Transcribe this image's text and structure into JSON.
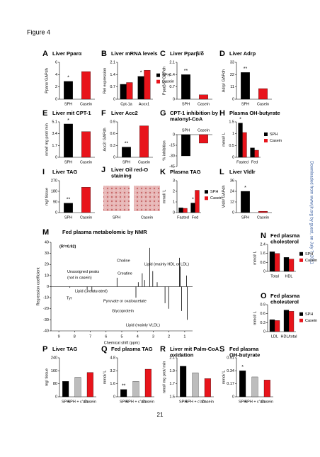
{
  "heading": "Figure 4",
  "page_number": "21",
  "side_note": "Downloaded from www.jlr.org by guest, on July 7, 2011",
  "chart_data": [
    {
      "type": "bar",
      "label": "A",
      "title": "Liver Pparα",
      "ylabel": "Pparα/ GAPdh",
      "categories": [
        "SPH",
        "Casein"
      ],
      "values": [
        2.9,
        4.5
      ],
      "colors": [
        "#000000",
        "#e8141b"
      ],
      "stars": [
        "*",
        null
      ],
      "ylim": [
        0,
        6
      ],
      "yticks": [
        0,
        2,
        4,
        6
      ]
    },
    {
      "type": "bar",
      "label": "B",
      "title": "Liver mRNA levels",
      "ylabel": "Rel expression",
      "categories": [
        "Cpt-1a",
        "Acox1"
      ],
      "series": [
        {
          "name": "SPH",
          "color": "#000000",
          "values": [
            0.85,
            1.3
          ],
          "stars": [
            null,
            "*"
          ]
        },
        {
          "name": "Casein",
          "color": "#e8141b",
          "values": [
            0.95,
            1.65
          ]
        }
      ],
      "ylim": [
        0,
        2.1
      ],
      "yticks": [
        0,
        0.7,
        1.4,
        2.1
      ]
    },
    {
      "type": "bar",
      "label": "C",
      "title": "Liver Pparβ/δ",
      "ylabel": "Pparβ/δ/ GAPdh",
      "categories": [
        "SPH",
        "Casein"
      ],
      "values": [
        1.4,
        0.25
      ],
      "colors": [
        "#000000",
        "#e8141b"
      ],
      "stars": [
        "**",
        null
      ],
      "ylim": [
        0,
        2.1
      ],
      "yticks": [
        0,
        0.7,
        1.4,
        2.1
      ]
    },
    {
      "type": "bar",
      "label": "D",
      "title": "Liver Adrp",
      "ylabel": "Adrp/ GAPdh",
      "categories": [
        "SPH",
        "Casein"
      ],
      "values": [
        24,
        9.5
      ],
      "colors": [
        "#000000",
        "#e8141b"
      ],
      "stars": [
        "**",
        null
      ],
      "ylim": [
        0,
        33
      ],
      "yticks": [
        0,
        11,
        22,
        33
      ]
    },
    {
      "type": "bar",
      "label": "E",
      "title": "Liver mit CPT-1",
      "ylabel": "nmol/ mg prot/ min",
      "categories": [
        "SPH",
        "Casein"
      ],
      "values": [
        4.8,
        3.7
      ],
      "colors": [
        "#000000",
        "#e8141b"
      ],
      "stars": [
        "*",
        null
      ],
      "ylim": [
        0,
        5.1
      ],
      "yticks": [
        0,
        1.7,
        3.4,
        5.1
      ]
    },
    {
      "type": "bar",
      "label": "F",
      "title": "Liver Acc2",
      "ylabel": "Acc2/ GAPdh",
      "categories": [
        "SPH",
        "Casein"
      ],
      "values": [
        0.26,
        0.8
      ],
      "colors": [
        "#000000",
        "#e8141b"
      ],
      "stars": [
        "**",
        null
      ],
      "ylim": [
        0,
        0.9
      ],
      "yticks": [
        0,
        0.3,
        0.6,
        0.9
      ]
    },
    {
      "type": "bar",
      "label": "G",
      "title": "CPT-1 inhibition by malonyl-CoA",
      "ylabel": "% inhibition",
      "categories": [
        "SPH",
        "Casein"
      ],
      "values": [
        -30,
        -12
      ],
      "colors": [
        "#000000",
        "#e8141b"
      ],
      "xaxis_position": "top",
      "ylim": [
        -45,
        0
      ],
      "yticks": [
        -45,
        -30,
        -15,
        0
      ]
    },
    {
      "type": "bar",
      "label": "H",
      "title": "Plasma OH-butyrate",
      "ylabel": "mmol/ L",
      "categories": [
        "Fasted",
        "Fed"
      ],
      "series": [
        {
          "name": "SPH",
          "color": "#000000",
          "values": [
            1.45,
            0.4
          ],
          "stars": [
            "*",
            null
          ]
        },
        {
          "name": "Casein",
          "color": "#e8141b",
          "values": [
            1.05,
            0.3
          ]
        }
      ],
      "ylim": [
        0,
        1.5
      ],
      "yticks": [
        0,
        0.5,
        1,
        1.5
      ]
    },
    {
      "type": "bar",
      "label": "I",
      "title": "Liver TAG",
      "ylabel": "mg/ tissue",
      "categories": [
        "SPH",
        "Casein"
      ],
      "values": [
        80,
        215
      ],
      "colors": [
        "#000000",
        "#e8141b"
      ],
      "stars": [
        "**",
        null
      ],
      "ylim": [
        0,
        270
      ],
      "yticks": [
        0,
        90,
        180,
        270
      ]
    },
    {
      "type": "micrograph",
      "label": "J",
      "title": "Liver Oil red-O staining",
      "categories": [
        "SPH",
        "Casein"
      ]
    },
    {
      "type": "bar",
      "label": "K",
      "title": "Plasma TAG",
      "ylabel": "mmol/ L",
      "categories": [
        "Fasted",
        "Fed"
      ],
      "series": [
        {
          "name": "SPH",
          "color": "#000000",
          "values": [
            0.45,
            0.9
          ],
          "stars": [
            null,
            "*"
          ]
        },
        {
          "name": "Casein",
          "color": "#e8141b",
          "values": [
            0.4,
            2.1
          ]
        }
      ],
      "ylim": [
        0,
        3
      ],
      "yticks": [
        0,
        1,
        2,
        3
      ]
    },
    {
      "type": "bar",
      "label": "L",
      "title": "Liver Vldlr",
      "ylabel": "Vldlr/ GAPdh",
      "categories": [
        "SPH",
        "Casein"
      ],
      "values": [
        24,
        1.5
      ],
      "colors": [
        "#000000",
        "#e8141b"
      ],
      "stars": [
        "*",
        null
      ],
      "ylim": [
        0,
        36
      ],
      "yticks": [
        0,
        12,
        24,
        36
      ]
    },
    {
      "type": "spectrum",
      "label": "M",
      "title": "Fed plasma metabolomic by NMR",
      "note": "(R²=0.92)",
      "ylabel": "Regression coefficient",
      "xlabel": "Chemical shift (ppm)",
      "x": [
        8.3,
        7.2,
        6.9,
        5.3,
        4.1,
        3.95,
        3.7,
        3.55,
        3.22,
        3.03,
        2.75,
        2.25,
        2.02,
        1.33,
        1.29,
        1.2,
        0.88,
        0.84
      ],
      "values": [
        -1,
        -3,
        -4,
        8,
        -10,
        4,
        12,
        6,
        35,
        14,
        4,
        -15,
        -20,
        26,
        18,
        -22,
        10,
        -30
      ],
      "annotations": [
        "Choline",
        "Unassigned peaks (not in casein)",
        "Creatine",
        "Lipid (mainly HDL or LDL)",
        "Lipid (unsaturated)",
        "Tyr",
        "Pyruvate or oxaloacetate",
        "Glycoprotein",
        "Lipid (mainly VLDL)"
      ],
      "xlim": [
        9.5,
        0.5
      ],
      "xticks": [
        9,
        8,
        7,
        6,
        5,
        4,
        3,
        2,
        1
      ],
      "ylim": [
        -40,
        40
      ],
      "yticks": [
        -40,
        -30,
        -20,
        -10,
        0,
        10,
        20,
        30,
        40
      ]
    },
    {
      "type": "bar",
      "label": "N",
      "title": "Fed plasma cholesterol",
      "ylabel": "mmol/ L",
      "categories": [
        "Total",
        "HDL"
      ],
      "series": [
        {
          "name": "SPH",
          "color": "#000000",
          "values": [
            1.75,
            1.25
          ]
        },
        {
          "name": "Casein",
          "color": "#e8141b",
          "values": [
            1.6,
            1.1
          ]
        }
      ],
      "ylim": [
        0,
        2.4
      ],
      "yticks": [
        0,
        0.8,
        1.6,
        2.4
      ]
    },
    {
      "type": "bar",
      "label": "O",
      "title": "Fed plasma cholesterol",
      "ylabel": "mmol/ L",
      "categories": [
        "LDL",
        "HDL/total"
      ],
      "series": [
        {
          "name": "SPH",
          "color": "#000000",
          "values": [
            0.4,
            0.72
          ]
        },
        {
          "name": "Casein",
          "color": "#e8141b",
          "values": [
            0.37,
            0.68
          ]
        }
      ],
      "ylim": [
        0,
        0.9
      ],
      "yticks": [
        0,
        0.3,
        0.6,
        0.9
      ]
    },
    {
      "type": "bar",
      "label": "P",
      "title": "Liver TAG",
      "ylabel": "mg/ tissue",
      "categories": [
        "SPH",
        "SPH + c'am",
        "Casein"
      ],
      "values": [
        95,
        120,
        150
      ],
      "colors": [
        "#000000",
        "#bdbdbd",
        "#e8141b"
      ],
      "ylim": [
        0,
        240
      ],
      "yticks": [
        0,
        80,
        160,
        240
      ]
    },
    {
      "type": "bar",
      "label": "Q",
      "title": "Fed plasma TAG",
      "ylabel": "mmol/ L",
      "categories": [
        "SPH",
        "SPH + c'am",
        "Casein"
      ],
      "values": [
        0.9,
        1.9,
        3.4
      ],
      "colors": [
        "#000000",
        "#bdbdbd",
        "#e8141b"
      ],
      "stars": [
        "**",
        null,
        null
      ],
      "ylim": [
        0,
        4.8
      ],
      "yticks": [
        0,
        1.6,
        3.2,
        4.8
      ]
    },
    {
      "type": "bar",
      "label": "R",
      "title": "Liver mit Palm-CoA oxidation",
      "ylabel": "nmol/ mg prot/ min",
      "categories": [
        "SPH",
        "SPH + c'am",
        "Casein"
      ],
      "values": [
        1.97,
        1.87,
        1.78
      ],
      "colors": [
        "#000000",
        "#bdbdbd",
        "#e8141b"
      ],
      "ylim": [
        1.5,
        2.1
      ],
      "yticks": [
        1.5,
        1.7,
        1.9,
        2.1
      ]
    },
    {
      "type": "bar",
      "label": "S",
      "title": "Fed plasma OH-butyrate",
      "ylabel": "mmol/ L",
      "categories": [
        "SPH",
        "SPH + c'am",
        "Casein"
      ],
      "values": [
        0.34,
        0.26,
        0.22
      ],
      "colors": [
        "#000000",
        "#bdbdbd",
        "#e8141b"
      ],
      "stars": [
        "*",
        null,
        null
      ],
      "ylim": [
        0,
        0.51
      ],
      "yticks": [
        0,
        0.17,
        0.34,
        0.51
      ]
    }
  ]
}
